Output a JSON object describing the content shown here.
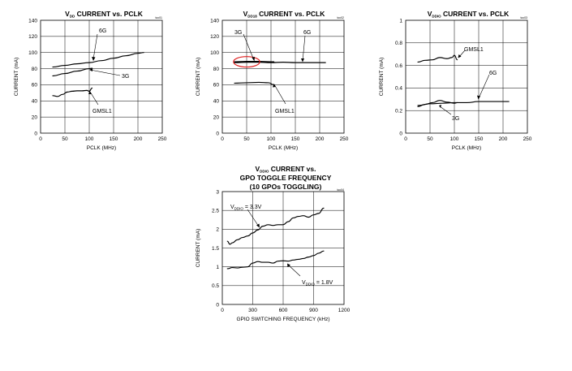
{
  "chart_data": [
    {
      "type": "line",
      "id": "ch1",
      "title": {
        "pre": "V",
        "sub": "DD",
        "post": " CURRENT vs. PCLK"
      },
      "code": "toc01",
      "xlabel": "PCLK (MHz)",
      "ylabel": "CURRENT (mA)",
      "xlim": [
        0,
        250
      ],
      "ylim": [
        0,
        140
      ],
      "xticks": [
        0,
        50,
        100,
        150,
        200,
        250
      ],
      "yticks": [
        0,
        20,
        40,
        60,
        80,
        100,
        120,
        140
      ],
      "grid": true,
      "series": [
        {
          "name": "6G",
          "x": [
            25,
            50,
            75,
            100,
            125,
            150,
            175,
            200,
            212
          ],
          "y": [
            82,
            84,
            86,
            87.5,
            90,
            93,
            96,
            99,
            100
          ]
        },
        {
          "name": "3G",
          "x": [
            25,
            50,
            75,
            100,
            106
          ],
          "y": [
            71,
            74,
            77,
            80,
            80.5
          ]
        },
        {
          "name": "GMSL1",
          "x": [
            25,
            35,
            45,
            55,
            65,
            75,
            85,
            95,
            100,
            106
          ],
          "y": [
            46.5,
            45.5,
            48,
            51,
            52,
            52.5,
            52.5,
            53,
            52,
            56
          ]
        }
      ],
      "annotations": [
        {
          "text": "6G",
          "series": "6G"
        },
        {
          "text": "3G",
          "series": "3G"
        },
        {
          "text": "GMSL1",
          "series": "GMSL1"
        }
      ]
    },
    {
      "type": "line",
      "id": "ch2",
      "title": {
        "pre": "V",
        "sub": "DD18",
        "post": " CURRENT vs. PCLK"
      },
      "code": "toc02",
      "xlabel": "PCLK (MHz)",
      "ylabel": "CURRENT (mA)",
      "xlim": [
        0,
        250
      ],
      "ylim": [
        0,
        140
      ],
      "xticks": [
        0,
        50,
        100,
        150,
        200,
        250
      ],
      "yticks": [
        0,
        20,
        40,
        60,
        80,
        100,
        120,
        140
      ],
      "grid": true,
      "series": [
        {
          "name": "6G",
          "x": [
            25,
            50,
            75,
            100,
            125,
            150,
            175,
            200,
            212
          ],
          "y": [
            87.5,
            88,
            88,
            87.5,
            88,
            87.5,
            87.5,
            87.5,
            87.5
          ]
        },
        {
          "name": "3G",
          "x": [
            25,
            50,
            75,
            100,
            106
          ],
          "y": [
            88.5,
            89,
            89,
            88.5,
            88.5
          ]
        },
        {
          "name": "GMSL1",
          "x": [
            25,
            50,
            75,
            95,
            106
          ],
          "y": [
            62,
            62.5,
            63,
            62.5,
            60
          ]
        }
      ],
      "annotations": [
        {
          "text": "3G",
          "series": "3G"
        },
        {
          "text": "6G",
          "series": "6G"
        },
        {
          "text": "GMSL1",
          "series": "GMSL1"
        }
      ],
      "highlight": {
        "shape": "ellipse",
        "cx": 50,
        "cy": 88.5,
        "rx": 27,
        "ry": 6.5
      }
    },
    {
      "type": "line",
      "id": "ch3",
      "title": {
        "pre": "V",
        "sub": "DDIO",
        "post": " CURRENT vs. PCLK"
      },
      "code": "toc03",
      "xlabel": "PCLK (MHz)",
      "ylabel": "CURRENT (mA)",
      "xlim": [
        0,
        250
      ],
      "ylim": [
        0,
        1
      ],
      "xticks": [
        0,
        50,
        100,
        150,
        200,
        250
      ],
      "yticks": [
        0,
        0.2,
        0.4,
        0.6,
        0.8,
        1
      ],
      "grid": true,
      "series": [
        {
          "name": "GMSL1",
          "x": [
            25,
            40,
            55,
            70,
            85,
            95,
            100,
            106
          ],
          "y": [
            0.63,
            0.645,
            0.65,
            0.67,
            0.66,
            0.67,
            0.69,
            0.65
          ]
        },
        {
          "name": "6G",
          "x": [
            25,
            50,
            75,
            100,
            125,
            150,
            175,
            200,
            212
          ],
          "y": [
            0.245,
            0.26,
            0.265,
            0.27,
            0.27,
            0.28,
            0.28,
            0.28,
            0.28
          ]
        },
        {
          "name": "3G",
          "x": [
            25,
            40,
            55,
            70,
            85,
            100,
            106
          ],
          "y": [
            0.235,
            0.255,
            0.27,
            0.29,
            0.275,
            0.265,
            0.27
          ]
        }
      ],
      "annotations": [
        {
          "text": "GMSL1",
          "series": "GMSL1"
        },
        {
          "text": "6G",
          "series": "6G"
        },
        {
          "text": "3G",
          "series": "3G"
        }
      ]
    },
    {
      "type": "line",
      "id": "ch4",
      "title": {
        "line1_pre": "V",
        "line1_sub": "DDIO",
        "line1_post": " CURRENT vs.",
        "line2": "GPO TOGGLE FREQUENCY",
        "line3": "(10 GPOs TOGGLING)"
      },
      "code": "toc04",
      "xlabel": "GPIO SWITCHING FREQUENCY (kHz)",
      "ylabel": "CURRENT (mA)",
      "xlim": [
        0,
        1200
      ],
      "ylim": [
        0,
        3
      ],
      "xticks": [
        0,
        300,
        600,
        900,
        1200
      ],
      "yticks": [
        0,
        0.5,
        1,
        1.5,
        2,
        2.5,
        3
      ],
      "grid": true,
      "series": [
        {
          "name": "VDDIO = 3.3V",
          "x": [
            50,
            75,
            100,
            150,
            200,
            250,
            300,
            350,
            400,
            450,
            500,
            550,
            600,
            650,
            700,
            750,
            800,
            850,
            900,
            950,
            1000
          ],
          "y": [
            1.68,
            1.6,
            1.64,
            1.72,
            1.78,
            1.82,
            1.9,
            1.98,
            2.08,
            2.12,
            2.1,
            2.12,
            2.12,
            2.2,
            2.3,
            2.34,
            2.36,
            2.32,
            2.38,
            2.42,
            2.56
          ]
        },
        {
          "name": "VDDIO = 1.8V",
          "x": [
            50,
            100,
            150,
            200,
            250,
            300,
            350,
            400,
            450,
            500,
            550,
            600,
            650,
            700,
            750,
            800,
            850,
            900,
            950,
            1000
          ],
          "y": [
            0.95,
            0.98,
            0.97,
            0.99,
            1.0,
            1.1,
            1.14,
            1.12,
            1.12,
            1.1,
            1.15,
            1.16,
            1.15,
            1.18,
            1.2,
            1.22,
            1.26,
            1.3,
            1.36,
            1.42
          ]
        }
      ],
      "annotations": [
        {
          "pre": "V",
          "sub": "DDIO",
          "post": " = 3.3V",
          "series": "VDDIO = 3.3V"
        },
        {
          "pre": "V",
          "sub": "DDIO",
          "post": " = 1.8V",
          "series": "VDDIO = 1.8V"
        }
      ]
    }
  ]
}
